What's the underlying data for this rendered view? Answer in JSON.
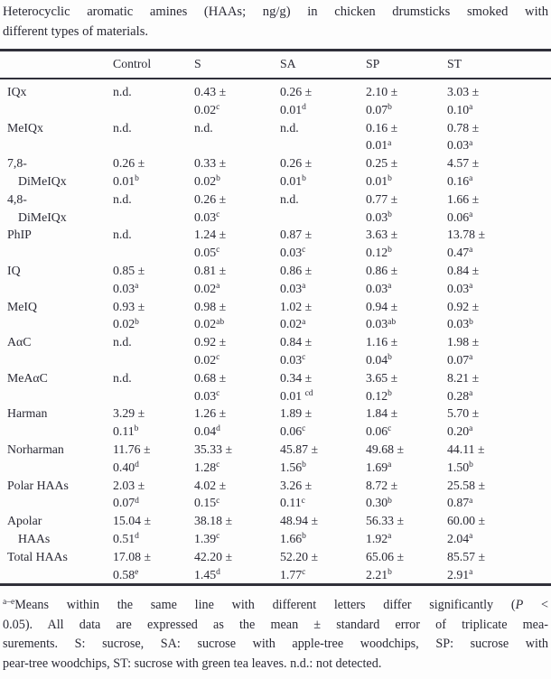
{
  "title_lines": [
    "Heterocyclic aromatic amines (HAAs; ng/g) in chicken drumsticks smoked with",
    "different types of materials."
  ],
  "table": {
    "columns": [
      "",
      "Control",
      "S",
      "SA",
      "SP",
      "ST"
    ],
    "rows": [
      {
        "label_lines": [
          "IQx"
        ],
        "cells": [
          {
            "mean": "n.d.",
            "se": "",
            "sup": ""
          },
          {
            "mean": "0.43 ±",
            "se": "0.02",
            "sup": "c"
          },
          {
            "mean": "0.26 ±",
            "se": "0.01",
            "sup": "d"
          },
          {
            "mean": "2.10 ±",
            "se": "0.07",
            "sup": "b"
          },
          {
            "mean": "3.03 ±",
            "se": "0.10",
            "sup": "a"
          }
        ]
      },
      {
        "label_lines": [
          "MeIQx"
        ],
        "cells": [
          {
            "mean": "n.d.",
            "se": "",
            "sup": ""
          },
          {
            "mean": "n.d.",
            "se": "",
            "sup": ""
          },
          {
            "mean": "n.d.",
            "se": "",
            "sup": ""
          },
          {
            "mean": "0.16 ±",
            "se": "0.01",
            "sup": "a"
          },
          {
            "mean": "0.78 ±",
            "se": "0.03",
            "sup": "a"
          }
        ]
      },
      {
        "label_lines": [
          "7,8-",
          "DiMeIQx"
        ],
        "cells": [
          {
            "mean": "0.26 ±",
            "se": "0.01",
            "sup": "b"
          },
          {
            "mean": "0.33 ±",
            "se": "0.02",
            "sup": "b"
          },
          {
            "mean": "0.26 ±",
            "se": "0.01",
            "sup": "b"
          },
          {
            "mean": "0.25 ±",
            "se": "0.01",
            "sup": "b"
          },
          {
            "mean": "4.57 ±",
            "se": "0.16",
            "sup": "a"
          }
        ]
      },
      {
        "label_lines": [
          "4,8-",
          "DiMeIQx"
        ],
        "cells": [
          {
            "mean": "n.d.",
            "se": "",
            "sup": ""
          },
          {
            "mean": "0.26 ±",
            "se": "0.03",
            "sup": "c"
          },
          {
            "mean": "n.d.",
            "se": "",
            "sup": ""
          },
          {
            "mean": "0.77 ±",
            "se": "0.03",
            "sup": "b"
          },
          {
            "mean": "1.66 ±",
            "se": "0.06",
            "sup": "a"
          }
        ]
      },
      {
        "label_lines": [
          "PhIP"
        ],
        "cells": [
          {
            "mean": "n.d.",
            "se": "",
            "sup": ""
          },
          {
            "mean": "1.24 ±",
            "se": "0.05",
            "sup": "c"
          },
          {
            "mean": "0.87 ±",
            "se": "0.03",
            "sup": "c"
          },
          {
            "mean": "3.63 ±",
            "se": "0.12",
            "sup": "b"
          },
          {
            "mean": "13.78 ±",
            "se": "0.47",
            "sup": "a"
          }
        ]
      },
      {
        "label_lines": [
          "IQ"
        ],
        "cells": [
          {
            "mean": "0.85 ±",
            "se": "0.03",
            "sup": "a"
          },
          {
            "mean": "0.81 ±",
            "se": "0.02",
            "sup": "a"
          },
          {
            "mean": "0.86 ±",
            "se": "0.03",
            "sup": "a"
          },
          {
            "mean": "0.86 ±",
            "se": "0.03",
            "sup": "a"
          },
          {
            "mean": "0.84 ±",
            "se": "0.03",
            "sup": "a"
          }
        ]
      },
      {
        "label_lines": [
          "MeIQ"
        ],
        "cells": [
          {
            "mean": "0.93 ±",
            "se": "0.02",
            "sup": "b"
          },
          {
            "mean": "0.98 ±",
            "se": "0.02",
            "sup": "ab"
          },
          {
            "mean": "1.02 ±",
            "se": "0.02",
            "sup": "a"
          },
          {
            "mean": "0.94 ±",
            "se": "0.03",
            "sup": "ab"
          },
          {
            "mean": "0.92 ±",
            "se": "0.03",
            "sup": "b"
          }
        ]
      },
      {
        "label_lines": [
          "AαC"
        ],
        "cells": [
          {
            "mean": "n.d.",
            "se": "",
            "sup": ""
          },
          {
            "mean": "0.92 ±",
            "se": "0.02",
            "sup": "c"
          },
          {
            "mean": "0.84 ±",
            "se": "0.03",
            "sup": "c"
          },
          {
            "mean": "1.16 ±",
            "se": "0.04",
            "sup": "b"
          },
          {
            "mean": "1.98 ±",
            "se": "0.07",
            "sup": "a"
          }
        ]
      },
      {
        "label_lines": [
          "MeAαC"
        ],
        "cells": [
          {
            "mean": "n.d.",
            "se": "",
            "sup": ""
          },
          {
            "mean": "0.68 ±",
            "se": "0.03",
            "sup": "c"
          },
          {
            "mean": "0.34 ±",
            "se": "0.01 ",
            "sup": "cd"
          },
          {
            "mean": "3.65 ±",
            "se": "0.12",
            "sup": "b"
          },
          {
            "mean": "8.21 ±",
            "se": "0.28",
            "sup": "a"
          }
        ]
      },
      {
        "label_lines": [
          "Harman"
        ],
        "cells": [
          {
            "mean": "3.29 ±",
            "se": "0.11",
            "sup": "b"
          },
          {
            "mean": "1.26 ±",
            "se": "0.04",
            "sup": "d"
          },
          {
            "mean": "1.89 ±",
            "se": "0.06",
            "sup": "c"
          },
          {
            "mean": "1.84 ±",
            "se": "0.06",
            "sup": "c"
          },
          {
            "mean": "5.70 ±",
            "se": "0.20",
            "sup": "a"
          }
        ]
      },
      {
        "label_lines": [
          "Norharman"
        ],
        "cells": [
          {
            "mean": "11.76 ±",
            "se": "0.40",
            "sup": "d"
          },
          {
            "mean": "35.33 ±",
            "se": "1.28",
            "sup": "c"
          },
          {
            "mean": "45.87 ±",
            "se": "1.56",
            "sup": "b"
          },
          {
            "mean": "49.68 ±",
            "se": "1.69",
            "sup": "a"
          },
          {
            "mean": "44.11 ±",
            "se": "1.50",
            "sup": "b"
          }
        ]
      },
      {
        "label_lines": [
          "Polar HAAs"
        ],
        "cells": [
          {
            "mean": "2.03 ±",
            "se": "0.07",
            "sup": "d"
          },
          {
            "mean": "4.02 ±",
            "se": "0.15",
            "sup": "c"
          },
          {
            "mean": "3.26 ±",
            "se": "0.11",
            "sup": "c"
          },
          {
            "mean": "8.72 ±",
            "se": "0.30",
            "sup": "b"
          },
          {
            "mean": "25.58 ±",
            "se": "0.87",
            "sup": "a"
          }
        ]
      },
      {
        "label_lines": [
          "Apolar",
          "HAAs"
        ],
        "cells": [
          {
            "mean": "15.04 ±",
            "se": "0.51",
            "sup": "d"
          },
          {
            "mean": "38.18 ±",
            "se": "1.39",
            "sup": "c"
          },
          {
            "mean": "48.94 ±",
            "se": "1.66",
            "sup": "b"
          },
          {
            "mean": "56.33 ±",
            "se": "1.92",
            "sup": "a"
          },
          {
            "mean": "60.00 ±",
            "se": "2.04",
            "sup": "a"
          }
        ]
      },
      {
        "label_lines": [
          "Total HAAs"
        ],
        "cells": [
          {
            "mean": "17.08 ±",
            "se": "0.58",
            "sup": "e"
          },
          {
            "mean": "42.20 ±",
            "se": "1.45",
            "sup": "d"
          },
          {
            "mean": "52.20 ±",
            "se": "1.77",
            "sup": "c"
          },
          {
            "mean": "65.06 ±",
            "se": "2.21",
            "sup": "b"
          },
          {
            "mean": "85.57 ±",
            "se": "2.91",
            "sup": "a"
          }
        ]
      }
    ]
  },
  "footnote": {
    "lines": [
      {
        "justify": true,
        "segments": [
          {
            "t": "a–e",
            "s": "sup"
          },
          {
            "t": "Means within the same line with different letters differ significantly (",
            "s": "n"
          },
          {
            "t": "P",
            "s": "i"
          },
          {
            "t": " <",
            "s": "n"
          }
        ]
      },
      {
        "justify": true,
        "segments": [
          {
            "t": "0.05). All data are expressed as the mean ± standard error of triplicate mea-",
            "s": "n"
          }
        ]
      },
      {
        "justify": true,
        "segments": [
          {
            "t": "surements. S: sucrose, SA: sucrose with apple-tree woodchips, SP: sucrose with",
            "s": "n"
          }
        ]
      },
      {
        "justify": false,
        "segments": [
          {
            "t": "pear-tree woodchips, ST: sucrose with green tea leaves. n.d.: not detected.",
            "s": "n"
          }
        ]
      }
    ]
  }
}
